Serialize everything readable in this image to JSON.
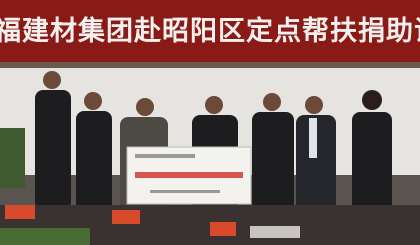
{
  "banner": {
    "text": "福建材集团赴昭阳区定点帮扶捐助证"
  }
}
